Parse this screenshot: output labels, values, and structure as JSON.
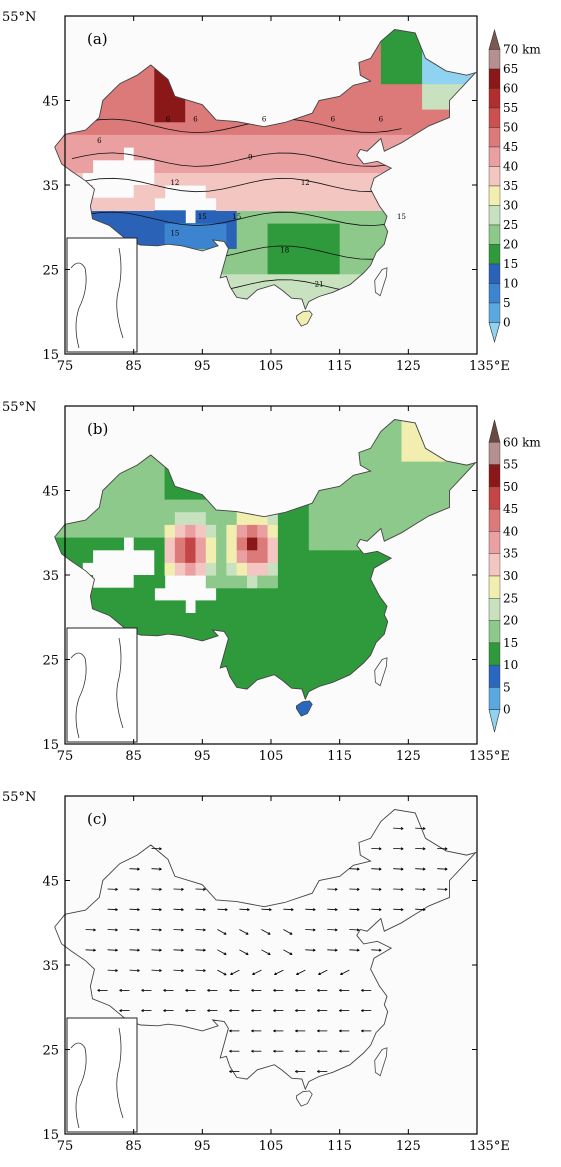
{
  "panels": [
    {
      "label": "(a)",
      "colorbar": {
        "unit": "km",
        "ticks": [
          "0",
          "5",
          "10",
          "15",
          "20",
          "25",
          "30",
          "35",
          "40",
          "45",
          "50",
          "55",
          "60",
          "65",
          "70"
        ],
        "colors": [
          "#8fd3f0",
          "#5aa8e0",
          "#3c84cf",
          "#2a62b8",
          "#2f9a3c",
          "#8cc98a",
          "#c8e2c0",
          "#f2eeb0",
          "#f4c6c2",
          "#eaa0a0",
          "#dc7a7a",
          "#cc5050",
          "#b22e2e",
          "#8a1818",
          "#b69090",
          "#7a5a50"
        ]
      },
      "contour_labels": [
        "6",
        "6",
        "6",
        "6",
        "6",
        "6",
        "9",
        "12",
        "12",
        "15",
        "15",
        "15",
        "15",
        "18",
        "21"
      ]
    },
    {
      "label": "(b)",
      "colorbar": {
        "unit": "km",
        "ticks": [
          "0",
          "5",
          "10",
          "15",
          "20",
          "25",
          "30",
          "35",
          "40",
          "45",
          "50",
          "55",
          "60"
        ],
        "colors": [
          "#8fd3f0",
          "#5aa8e0",
          "#2a68c0",
          "#2f9a3c",
          "#8cc98a",
          "#c8e2c0",
          "#f2eeb0",
          "#f4c6c2",
          "#eaa0a0",
          "#dc7a7a",
          "#c44545",
          "#8a1818",
          "#b69090",
          "#6a4a40"
        ]
      },
      "contour_labels": []
    },
    {
      "label": "(c)",
      "colorbar": null,
      "contour_labels": []
    }
  ],
  "axes": {
    "x_ticks": [
      "75",
      "85",
      "95",
      "105",
      "115",
      "125",
      "135"
    ],
    "x_unit": "°E",
    "y_ticks": [
      "15",
      "25",
      "35",
      "45",
      "55"
    ],
    "y_unit": "°N"
  },
  "colors": {
    "frame": "#000000",
    "border": "#444444"
  },
  "icons": {
    "inset": "south-china-sea-inset",
    "vectors": "wind-vector-arrows"
  }
}
